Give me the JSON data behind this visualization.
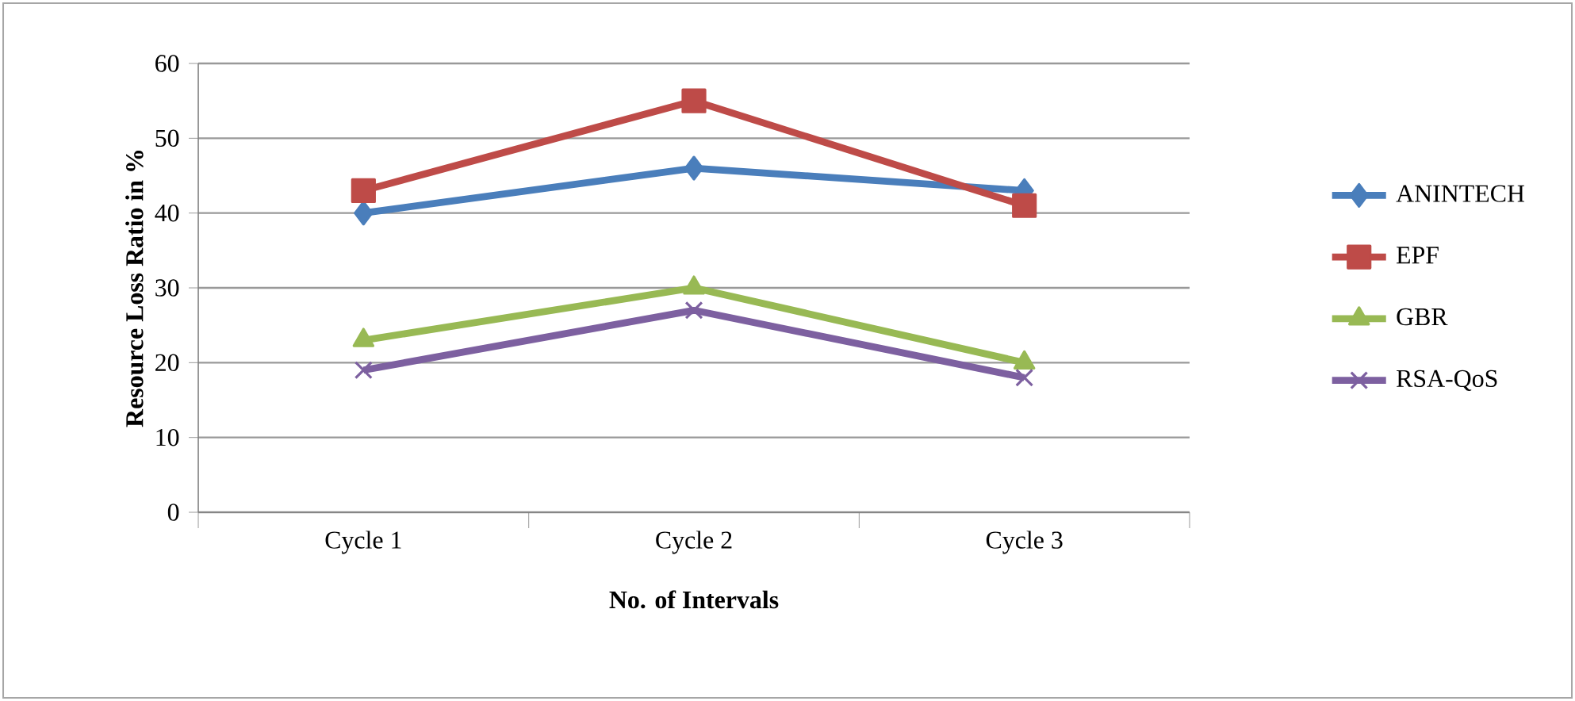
{
  "chart_data": {
    "type": "line",
    "xlabel": "No. of Intervals",
    "ylabel": "Resource Loss Ratio in %",
    "categories": [
      "Cycle 1",
      "Cycle 2",
      "Cycle 3"
    ],
    "ylim": [
      0,
      60
    ],
    "yticks": [
      0,
      10,
      20,
      30,
      40,
      50,
      60
    ],
    "grid": "y",
    "legend": "right",
    "series": [
      {
        "name": "ANINTECH",
        "color": "#4a7ebb",
        "marker": "diamond",
        "values": [
          40,
          46,
          43
        ]
      },
      {
        "name": "EPF",
        "color": "#be4b48",
        "marker": "square",
        "values": [
          43,
          55,
          41
        ]
      },
      {
        "name": "GBR",
        "color": "#98b954",
        "marker": "triangle",
        "values": [
          23,
          30,
          20
        ]
      },
      {
        "name": "RSA-QoS",
        "color": "#7d60a0",
        "marker": "cross",
        "values": [
          19,
          27,
          18
        ]
      }
    ]
  }
}
